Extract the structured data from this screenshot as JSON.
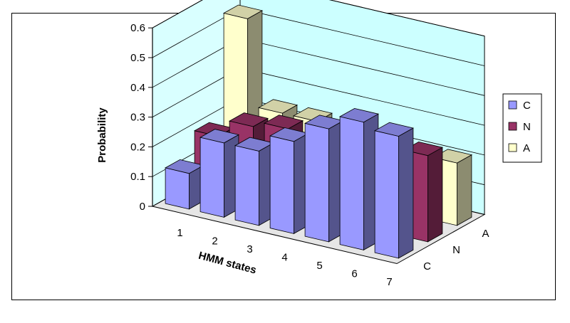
{
  "chart_data": {
    "type": "bar",
    "subtype": "3d-clustered-columns",
    "xlabel": "HMM states",
    "ylabel": "Probability",
    "categories": [
      "1",
      "2",
      "3",
      "4",
      "5",
      "6",
      "7"
    ],
    "depth_categories": [
      "C",
      "N",
      "A"
    ],
    "yticks": [
      "0",
      "0.1",
      "0.2",
      "0.3",
      "0.4",
      "0.5",
      "0.6"
    ],
    "ylim": [
      0,
      0.6
    ],
    "grid": true,
    "legend_position": "right",
    "series": [
      {
        "name": "C",
        "color": "#9999ff",
        "values": [
          0.12,
          0.25,
          0.25,
          0.31,
          0.38,
          0.43,
          0.41
        ]
      },
      {
        "name": "N",
        "color": "#993366",
        "values": [
          0.19,
          0.25,
          0.27,
          0.25,
          0.26,
          0.24,
          0.29
        ]
      },
      {
        "name": "A",
        "color": "#ffffcc",
        "values": [
          0.53,
          0.24,
          0.24,
          0.0,
          0.0,
          0.0,
          0.21
        ]
      }
    ]
  }
}
